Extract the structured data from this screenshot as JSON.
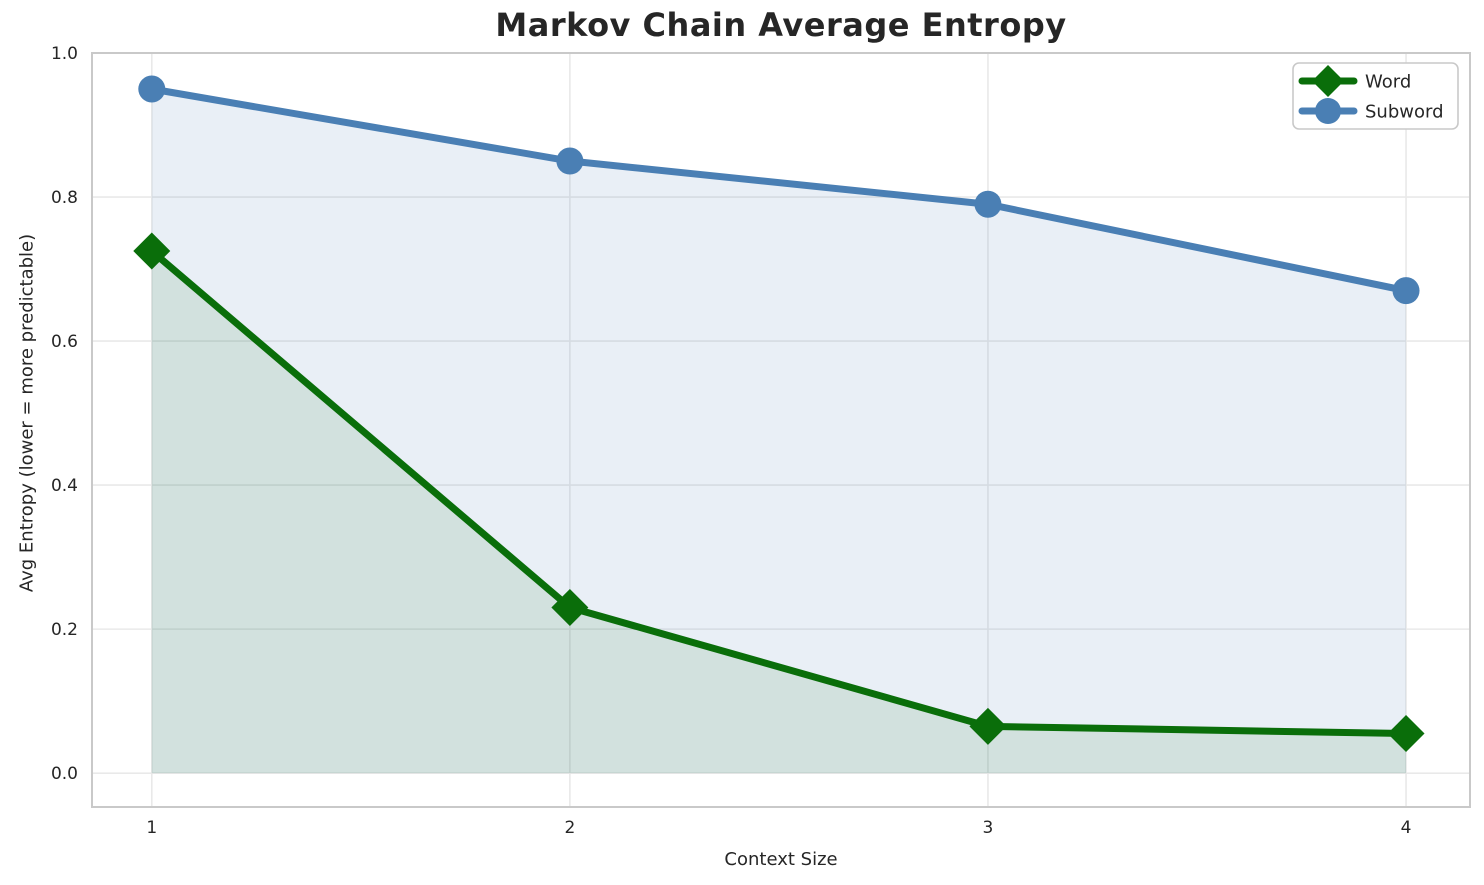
{
  "chart_data": {
    "type": "line",
    "title": "Markov Chain Average Entropy",
    "xlabel": "Context Size",
    "ylabel": "Avg Entropy (lower = more predictable)",
    "x": [
      1,
      2,
      3,
      4
    ],
    "series": [
      {
        "name": "Word",
        "values": [
          0.725,
          0.23,
          0.065,
          0.055
        ],
        "color": "#0a6e0a",
        "marker": "diamond",
        "area_fill_rgba": "rgba(10,110,10,0.10)"
      },
      {
        "name": "Subword",
        "values": [
          0.95,
          0.85,
          0.79,
          0.67
        ],
        "color": "#4a7fb4",
        "marker": "circle",
        "area_fill_rgba": "rgba(74,127,180,0.12)"
      }
    ],
    "xticks": [
      "1",
      "2",
      "3",
      "4"
    ],
    "yticks": [
      "0.0",
      "0.2",
      "0.4",
      "0.6",
      "0.8",
      "1.0"
    ],
    "xlim": [
      0.857,
      4.153
    ],
    "ylim": [
      -0.047,
      1.0
    ],
    "grid": true,
    "area_fill": true,
    "legend": {
      "position": "upper right",
      "entries": [
        "Word",
        "Subword"
      ]
    },
    "style": {
      "background": "#ffffff",
      "grid_color": "#e9e9e9",
      "spine_color": "#c9c9c9",
      "text_color": "#262626"
    }
  }
}
